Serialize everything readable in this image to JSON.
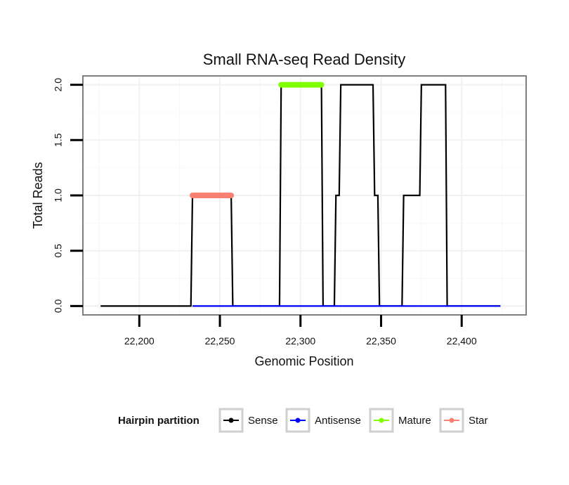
{
  "chart_data": {
    "type": "line",
    "title": "Small RNA-seq Read Density",
    "xlabel": "Genomic Position",
    "ylabel": "Total Reads",
    "xlim": [
      22165,
      22440
    ],
    "ylim": [
      -0.08,
      2.08
    ],
    "x_ticks": [
      22200,
      22250,
      22300,
      22350,
      22400
    ],
    "x_tick_labels": [
      "22,200",
      "22,250",
      "22,300",
      "22,350",
      "22,400"
    ],
    "y_ticks": [
      0,
      0.5,
      1,
      1.5,
      2
    ],
    "y_tick_labels": [
      "0.0",
      "0.5",
      "1.0",
      "1.5",
      "2.0"
    ],
    "grid": true,
    "legend": {
      "title": "Hairpin partition",
      "placement": "bottom",
      "items": [
        {
          "label": "Sense",
          "color": "#000000"
        },
        {
          "label": "Antisense",
          "color": "#0000ff"
        },
        {
          "label": "Mature",
          "color": "#7fff00"
        },
        {
          "label": "Star",
          "color": "#fa8072"
        }
      ]
    },
    "series": [
      {
        "name": "Sense",
        "color": "#000000",
        "x": [
          22176,
          22232,
          22233,
          22257,
          22258,
          22287,
          22288,
          22313,
          22314,
          22321,
          22322,
          22324,
          22325,
          22345,
          22346,
          22348,
          22349,
          22363,
          22364,
          22374,
          22375,
          22390,
          22391,
          22424
        ],
        "y": [
          0,
          0,
          1,
          1,
          0,
          0,
          2,
          2,
          0,
          0,
          1,
          1,
          2,
          2,
          1,
          1,
          0,
          0,
          1,
          1,
          2,
          2,
          0,
          0
        ]
      },
      {
        "name": "Antisense",
        "color": "#0000ff",
        "x": [
          22233,
          22424
        ],
        "y": [
          0,
          0
        ]
      },
      {
        "name": "Mature",
        "color": "#7fff00",
        "x": [
          22288,
          22313
        ],
        "y": [
          2,
          2
        ]
      },
      {
        "name": "Star",
        "color": "#fa8072",
        "x": [
          22233,
          22257
        ],
        "y": [
          1,
          1
        ]
      }
    ]
  }
}
